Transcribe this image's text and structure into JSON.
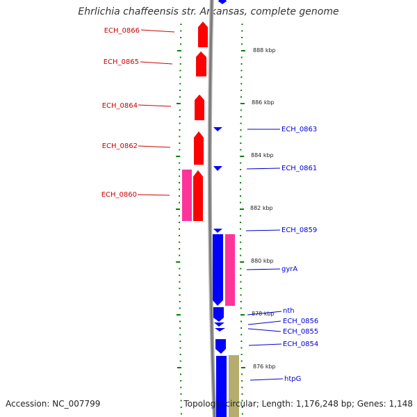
{
  "title": "Ehrlichia chaffeensis str. Arkansas, complete genome",
  "footer": {
    "accession": "Accession: NC_007799",
    "summary": "Topology: circular; Length: 1,176,248 bp; Genes: 1,148"
  },
  "colors": {
    "forward_cds": "#ff0000",
    "reverse_cds": "#0000ff",
    "pink_feature": "#ff3399",
    "tan_feature": "#b5ad6e",
    "forward_label": "#cc0000",
    "reverse_label": "#0000cc",
    "tick": "#008000",
    "backbone": "#888888"
  },
  "scale_labels": [
    "888 kbp",
    "886 kbp",
    "884 kbp",
    "882 kbp",
    "880 kbp",
    "878 kbp",
    "876 kbp"
  ],
  "forward_genes": [
    "ECH_0866",
    "ECH_0865",
    "ECH_0864",
    "ECH_0862",
    "ECH_0860"
  ],
  "reverse_genes": [
    "ECH_0863",
    "ECH_0861",
    "ECH_0859",
    "gyrA",
    "nth",
    "ECH_0856",
    "ECH_0855",
    "ECH_0854",
    "htpG"
  ]
}
